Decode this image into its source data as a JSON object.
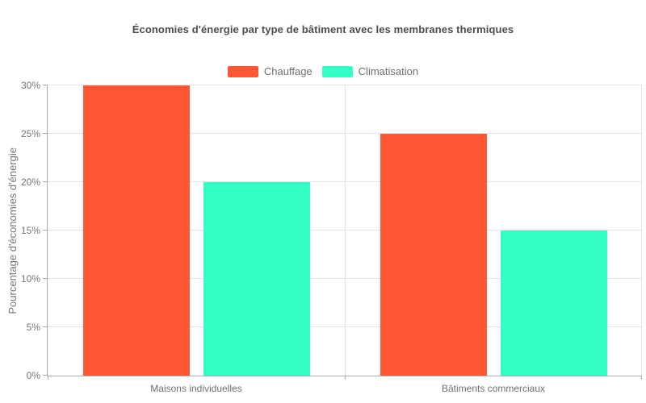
{
  "chart_data": {
    "type": "bar",
    "title": "Économies d'énergie par type de bâtiment avec les membranes thermiques",
    "categories": [
      "Maisons individuelles",
      "Bâtiments commerciaux"
    ],
    "series": [
      {
        "name": "Chauffage",
        "color": "#FF5733",
        "values": [
          30,
          25
        ]
      },
      {
        "name": "Climatisation",
        "color": "#33FFC4",
        "values": [
          20,
          15
        ]
      }
    ],
    "xlabel": "",
    "ylabel": "Pourcentage d'économies d'énergie",
    "ylim": [
      0,
      30
    ],
    "yticks": [
      "0%",
      "5%",
      "10%",
      "15%",
      "20%",
      "25%",
      "30%"
    ],
    "grid": true,
    "legend_position": "top-center"
  },
  "colors": {
    "grid_color": "#e3e3e3",
    "axis_color": "#aaaaaa",
    "text_color": "#757575",
    "title_color": "#4d4d4d"
  }
}
